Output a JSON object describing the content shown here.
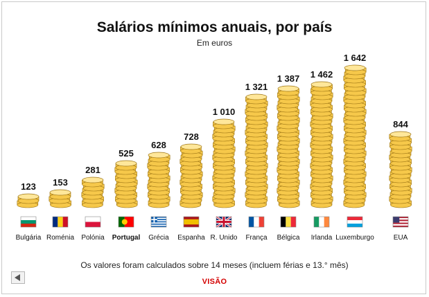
{
  "chart_data": {
    "type": "bar",
    "title": "Salários mínimos anuais, por país",
    "subtitle": "Em euros",
    "categories": [
      "Bulgária",
      "Roménia",
      "Polónia",
      "Portugal",
      "Grécia",
      "Espanha",
      "R. Unido",
      "França",
      "Bélgica",
      "Irlanda",
      "Luxemburgo",
      "EUA"
    ],
    "values": [
      123,
      153,
      281,
      525,
      628,
      728,
      1010,
      1321,
      1387,
      1462,
      1642,
      844
    ],
    "value_labels": [
      "123",
      "153",
      "281",
      "525",
      "628",
      "728",
      "1 010",
      "1 321",
      "1 387",
      "1 462",
      "1 642",
      "844"
    ],
    "highlight": "Portugal",
    "flags": [
      "flag-bulgaria",
      "flag-romania",
      "flag-poland",
      "flag-portugal",
      "flag-greece",
      "flag-spain",
      "flag-uk",
      "flag-france",
      "flag-belgium",
      "flag-ireland",
      "flag-luxembourg",
      "flag-usa"
    ],
    "ylim": [
      0,
      1642
    ],
    "grid": false,
    "legend": "none"
  },
  "footnote": "Os valores foram calculados sobre 14 meses (incluem férias e 13.° mês)",
  "brand": "VISÃO",
  "back_icon": "left-arrow-icon",
  "colors": {
    "coin": "#f6c84a",
    "coin_top": "#ffe79a",
    "coin_edge": "#9c7414",
    "brand": "#d40000"
  }
}
